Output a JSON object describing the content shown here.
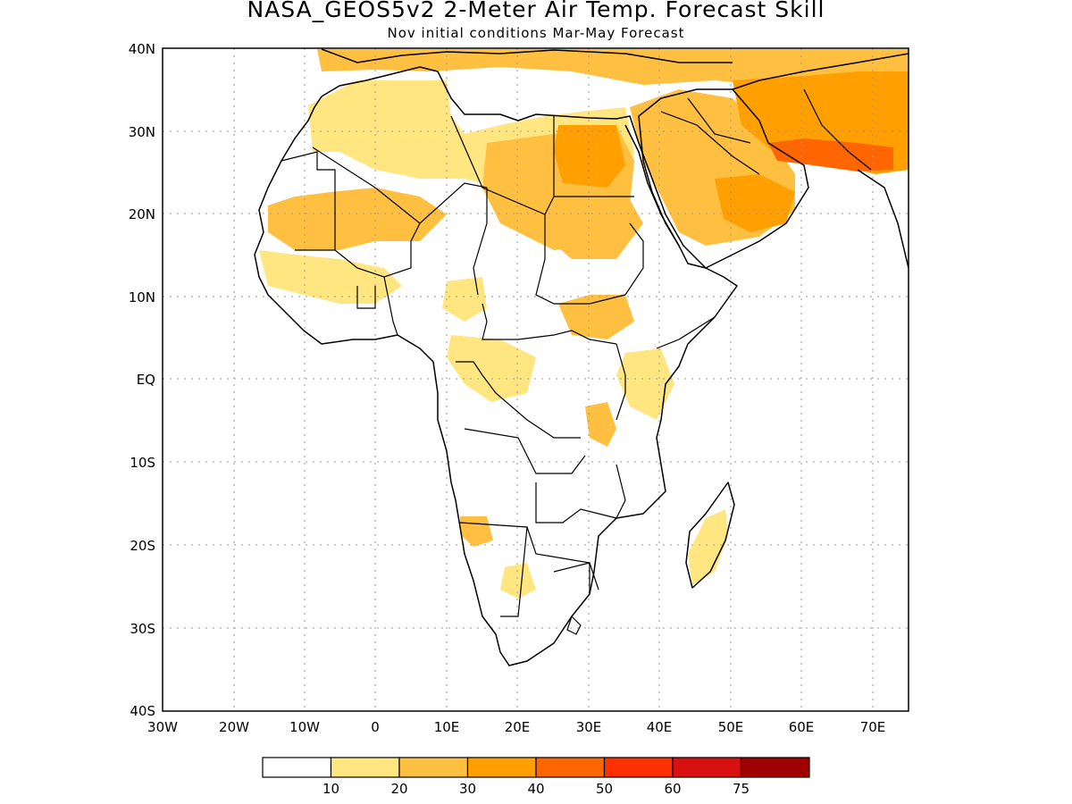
{
  "header": {
    "title": "NASA_GEOS5v2 2-Meter Air Temp. Forecast Skill",
    "subtitle": "Nov initial conditions  Mar-May Forecast"
  },
  "axes": {
    "lat_labels": [
      "40N",
      "30N",
      "20N",
      "10N",
      "EQ",
      "10S",
      "20S",
      "30S",
      "40S"
    ],
    "lon_labels": [
      "30W",
      "20W",
      "10W",
      "0",
      "10E",
      "20E",
      "30E",
      "40E",
      "50E",
      "60E",
      "70E"
    ],
    "lat_range": [
      -40,
      40
    ],
    "lon_range": [
      -30,
      75
    ],
    "grid": "dotted, every 10 degrees"
  },
  "colorbar": {
    "colors": [
      "#ffffff",
      "#ffe680",
      "#ffbf40",
      "#ffa000",
      "#ff6600",
      "#ff3000",
      "#d81010",
      "#a00000"
    ],
    "labels": [
      "10",
      "20",
      "30",
      "40",
      "50",
      "60",
      "75"
    ]
  },
  "skill_regions": [
    {
      "name": "nw-sahara",
      "level": 1
    },
    {
      "name": "mauritania-mali",
      "level": 2
    },
    {
      "name": "libya-egypt",
      "level": 2
    },
    {
      "name": "egypt-core",
      "level": 3
    },
    {
      "name": "sudan",
      "level": 2
    },
    {
      "name": "arabia",
      "level": 2
    },
    {
      "name": "arabia-south",
      "level": 3
    },
    {
      "name": "iran-pakistan",
      "level": 3
    },
    {
      "name": "persian-gulf-max",
      "level": 4
    },
    {
      "name": "south-sudan",
      "level": 2
    },
    {
      "name": "east-africa",
      "level": 1
    },
    {
      "name": "madagascar",
      "level": 1
    }
  ]
}
